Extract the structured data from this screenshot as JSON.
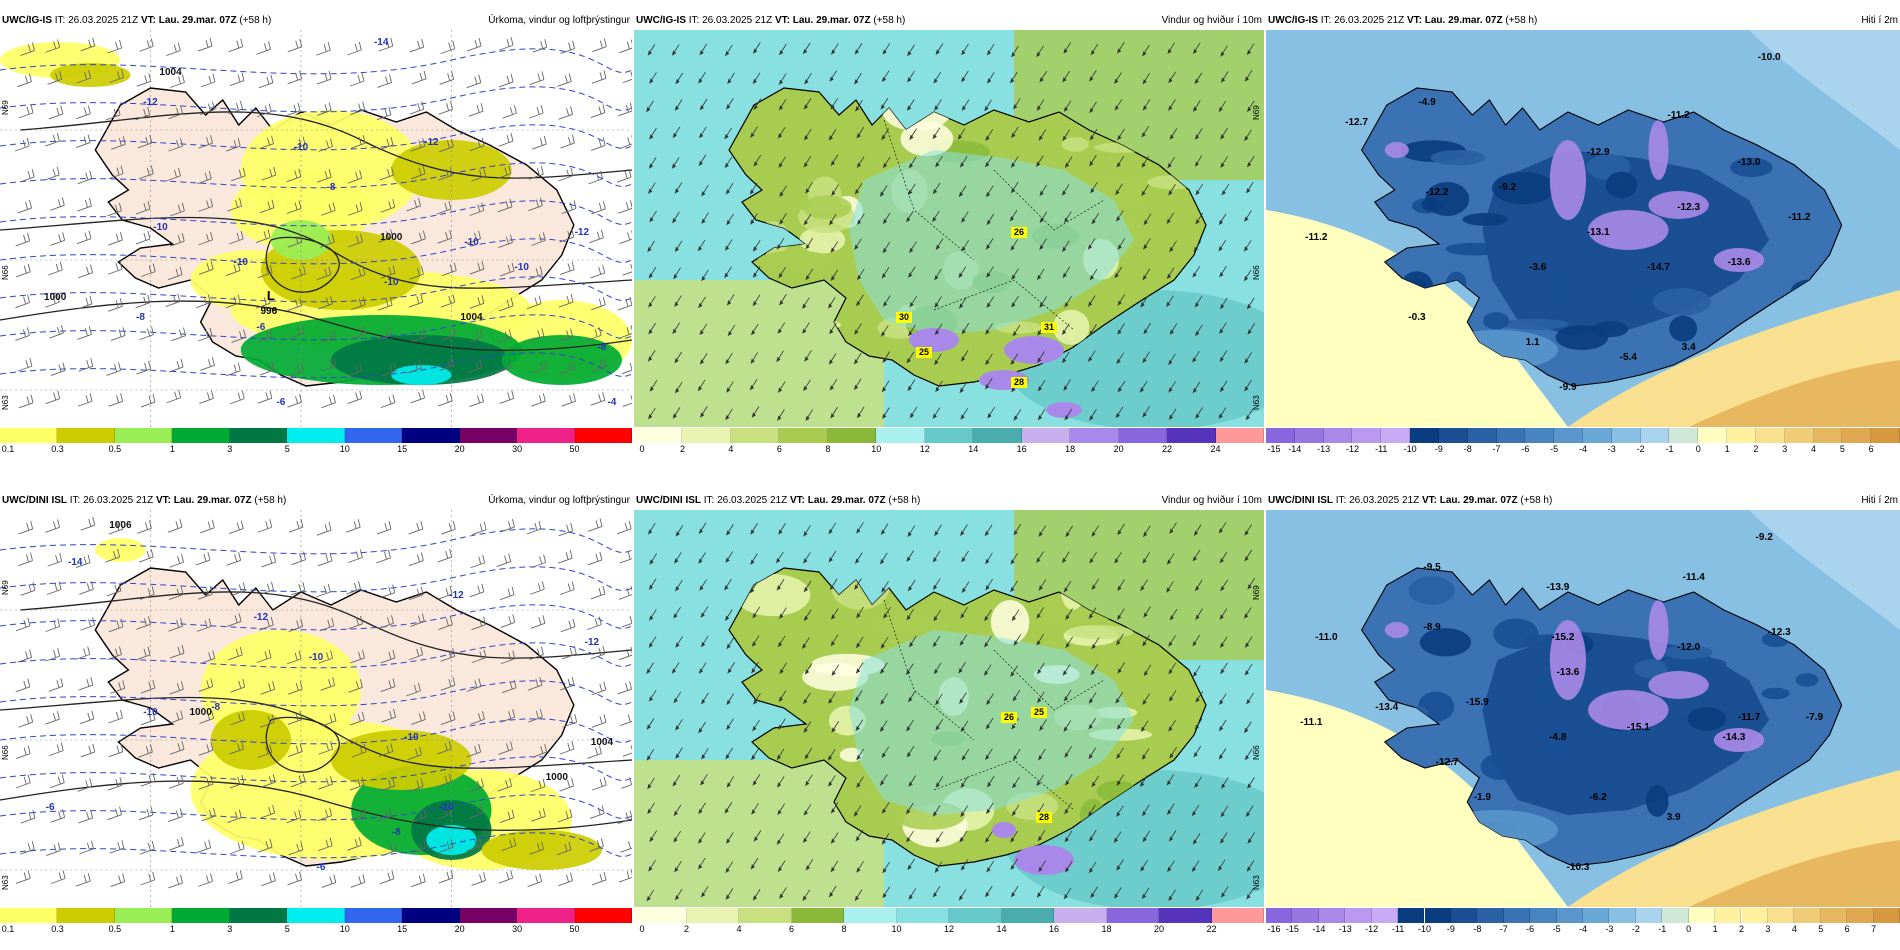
{
  "colors": {
    "precip": [
      "#ffff66",
      "#cccc00",
      "#99ee55",
      "#00aa33",
      "#007744",
      "#00eeee",
      "#3366ee",
      "#000080",
      "#770066",
      "#ee2288",
      "#ff0000"
    ],
    "wind": [
      "#ffffe0",
      "#e8f4b0",
      "#c8e080",
      "#a8cc50",
      "#8ab838",
      "#aaf0f0",
      "#88e0e0",
      "#66c8c8",
      "#4aacac",
      "#c8b0f0",
      "#a888e8",
      "#8866dd",
      "#5533bb",
      "#ff9999"
    ],
    "temp": [
      "#8866dd",
      "#9977e0",
      "#aa88e8",
      "#bb99f0",
      "#c8aaf5",
      "#0a3d80",
      "#1a4f94",
      "#2a60a4",
      "#3a72b4",
      "#4a84c0",
      "#5a96cc",
      "#6aa8d6",
      "#88c0e4",
      "#aad4ee",
      "#d0e8d8",
      "#ffffc0",
      "#fff0a0",
      "#f8e090",
      "#f0cc78",
      "#e8b860",
      "#e0a850",
      "#d89840"
    ],
    "land": "#fae8dc",
    "sea": "#ffffff"
  },
  "icons": [
    "wind-barb-icon",
    "wind-arrow-icon",
    "low-pressure-symbol"
  ],
  "panels": [
    {
      "model": "UWC/IG-IS",
      "it_label": "IT:",
      "it": "26.03.2025 21Z",
      "vt_label": "VT:",
      "vt": "Lau. 29.mar. 07Z",
      "lead": "(+58 h)",
      "title": "Úrkoma, vindur og loftþrýstingur",
      "type": "precip",
      "ticks": [
        "0.1",
        "0.3",
        "0.5",
        "1",
        "3",
        "5",
        "10",
        "15",
        "20",
        "30",
        "50"
      ],
      "labels": [
        "-14",
        "-12",
        "-12",
        "-10",
        "-8",
        "-10",
        "-10",
        "-12",
        "-10",
        "-10",
        "-8",
        "-8",
        "-6",
        "-6",
        "-4",
        "-10",
        "1004",
        "1000",
        "1004",
        "1000"
      ],
      "axis": [
        "N69",
        "N66",
        "N63"
      ],
      "low": {
        "symbol": "L",
        "value": "996"
      }
    },
    {
      "model": "UWC/IG-IS",
      "it_label": "IT:",
      "it": "26.03.2025 21Z",
      "vt_label": "VT:",
      "vt": "Lau. 29.mar. 07Z",
      "lead": "(+58 h)",
      "title": "Vindur og hviður í 10m",
      "type": "wind",
      "ticks": [
        "0",
        "2",
        "4",
        "6",
        "8",
        "10",
        "12",
        "14",
        "16",
        "18",
        "20",
        "22",
        "24"
      ],
      "labels": [
        "26",
        "30",
        "31",
        "25",
        "28"
      ],
      "axis": [
        "N69",
        "N66",
        "N63"
      ]
    },
    {
      "model": "UWC/IG-IS",
      "it_label": "IT:",
      "it": "26.03.2025 21Z",
      "vt_label": "VT:",
      "vt": "Lau. 29.mar. 07Z",
      "lead": "(+58 h)",
      "title": "Hiti í 2m",
      "type": "temp",
      "ticks": [
        "-15",
        "-14",
        "-13",
        "-12",
        "-11",
        "-10",
        "-9",
        "-8",
        "-7",
        "-6",
        "-5",
        "-4",
        "-3",
        "-2",
        "-1",
        "0",
        "1",
        "2",
        "3",
        "4",
        "5",
        "6"
      ],
      "labels": [
        "-10.0",
        "-12.7",
        "-4.9",
        "-11.2",
        "-12.9",
        "-13.0",
        "-12.2",
        "-9.2",
        "-12.3",
        "-11.2",
        "-11.2",
        "-13.1",
        "-3.6",
        "-14.7",
        "-13.6",
        "-0.3",
        "1.1",
        "-5.4",
        "3.4",
        "-9.9"
      ]
    },
    {
      "model": "UWC/DINI ISL",
      "it_label": "IT:",
      "it": "26.03.2025 21Z",
      "vt_label": "VT:",
      "vt": "Lau. 29.mar. 07Z",
      "lead": "(+58 h)",
      "title": "Úrkoma, vindur og loftþrýstingur",
      "type": "precip",
      "ticks": [
        "0.1",
        "0.3",
        "0.5",
        "1",
        "3",
        "5",
        "10",
        "15",
        "20",
        "30",
        "50"
      ],
      "labels": [
        "1006",
        "-14",
        "-12",
        "-12",
        "-10",
        "-10",
        "-8",
        "-12",
        "-10",
        "-10",
        "-8",
        "-6",
        "-6",
        "1000",
        "1000",
        "1004",
        "-12"
      ],
      "axis": [
        "N69",
        "N66",
        "N63"
      ]
    },
    {
      "model": "UWC/DINI ISL",
      "it_label": "IT:",
      "it": "26.03.2025 21Z",
      "vt_label": "VT:",
      "vt": "Lau. 29.mar. 07Z",
      "lead": "(+58 h)",
      "title": "Vindur og hviður í 10m",
      "type": "wind",
      "ticks": [
        "0",
        "2",
        "4",
        "6",
        "8",
        "10",
        "12",
        "14",
        "16",
        "18",
        "20",
        "22"
      ],
      "labels": [
        "26",
        "25",
        "28"
      ],
      "axis": [
        "N69",
        "N66",
        "N63"
      ]
    },
    {
      "model": "UWC/DINI ISL",
      "it_label": "IT:",
      "it": "26.03.2025 21Z",
      "vt_label": "VT:",
      "vt": "Lau. 29.mar. 07Z",
      "lead": "(+58 h)",
      "title": "Hiti í 2m",
      "type": "temp",
      "ticks": [
        "-16",
        "-15",
        "-14",
        "-13",
        "-12",
        "-11",
        "-10",
        "-9",
        "-8",
        "-7",
        "-6",
        "-5",
        "-4",
        "-3",
        "-2",
        "-1",
        "0",
        "1",
        "2",
        "3",
        "4",
        "5",
        "6",
        "7"
      ],
      "labels": [
        "-9.2",
        "-9.5",
        "-13.9",
        "-11.4",
        "-8.9",
        "-15.2",
        "-12.3",
        "-11.0",
        "-13.6",
        "-12.0",
        "-15.9",
        "-13.4",
        "-11.1",
        "-4.8",
        "-15.1",
        "-14.3",
        "-11.7",
        "-7.9",
        "-12.7",
        "-1.9",
        "-6.2",
        "3.9",
        "-10.3"
      ]
    }
  ]
}
